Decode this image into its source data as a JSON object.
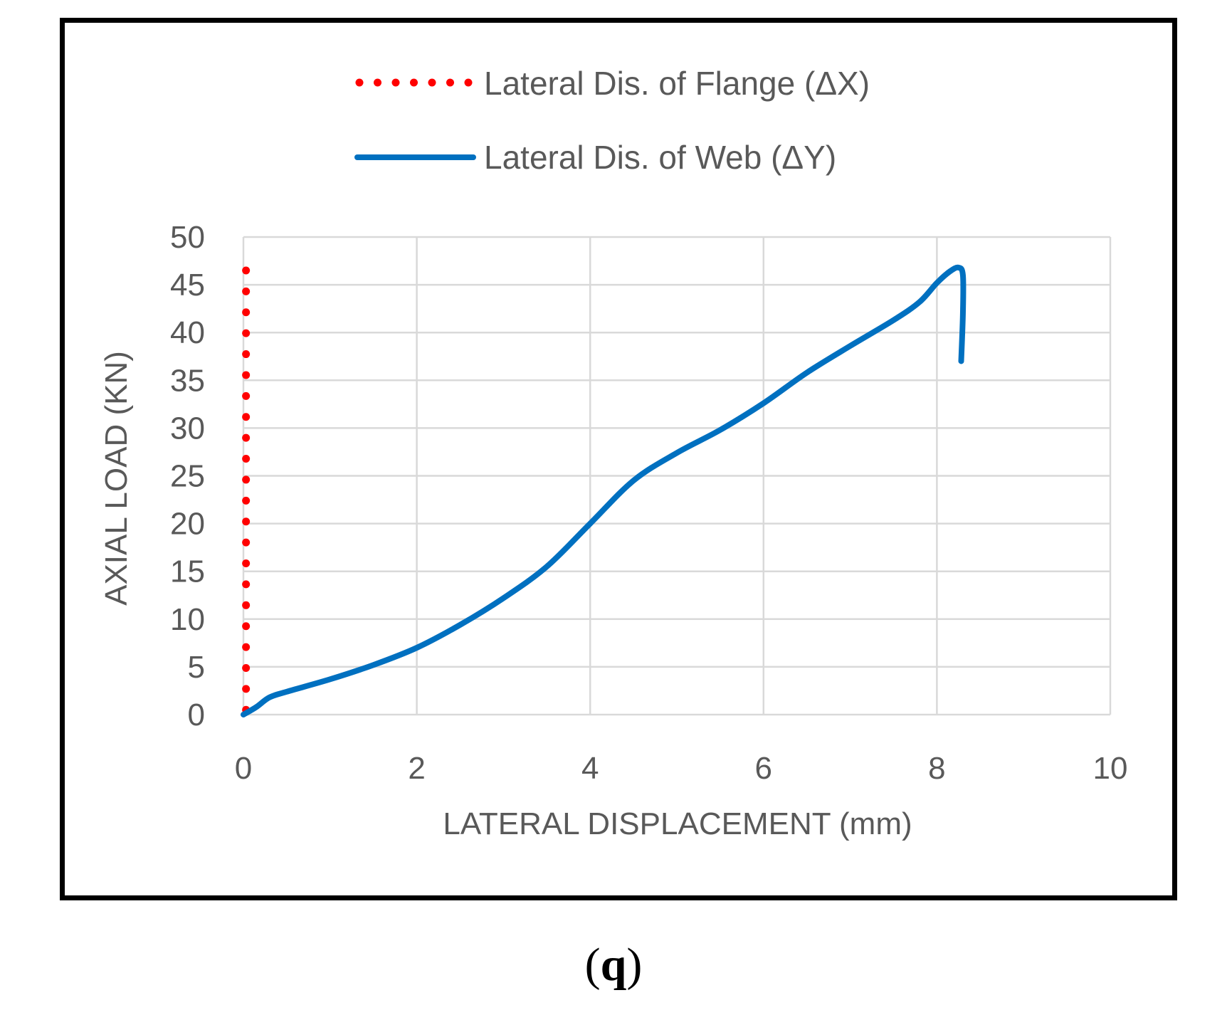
{
  "chart_data": {
    "type": "line",
    "title": "",
    "xlabel": "LATERAL DISPLACEMENT (mm)",
    "ylabel": "AXIAL LOAD (KN)",
    "xlim": [
      0,
      10
    ],
    "ylim": [
      0,
      50
    ],
    "x_ticks": [
      0,
      2,
      4,
      6,
      8,
      10
    ],
    "y_ticks": [
      0,
      5,
      10,
      15,
      20,
      25,
      30,
      35,
      40,
      45,
      50
    ],
    "grid": true,
    "legend_position": "top-center",
    "series": [
      {
        "name": "Lateral Dis. of Flange (ΔX)",
        "style": "dotted",
        "color": "#ff0000",
        "x": [
          0.03,
          0.03
        ],
        "y": [
          0.5,
          46.5
        ]
      },
      {
        "name": "Lateral Dis. of Web (ΔY)",
        "style": "solid",
        "color": "#0070c0",
        "x": [
          0,
          0.15,
          0.3,
          0.5,
          1.0,
          1.5,
          2.0,
          2.5,
          3.0,
          3.5,
          4.0,
          4.5,
          5.0,
          5.5,
          6.0,
          6.5,
          7.0,
          7.5,
          7.8,
          8.0,
          8.15,
          8.25,
          8.3,
          8.3,
          8.28
        ],
        "y": [
          0,
          0.8,
          1.8,
          2.4,
          3.7,
          5.2,
          7.0,
          9.4,
          12.2,
          15.5,
          20.0,
          24.5,
          27.4,
          29.8,
          32.6,
          35.8,
          38.6,
          41.3,
          43.2,
          45.2,
          46.4,
          46.8,
          46.0,
          42.0,
          37.0
        ]
      }
    ]
  },
  "caption": {
    "open": "(",
    "letter": "q",
    "close": ")"
  }
}
